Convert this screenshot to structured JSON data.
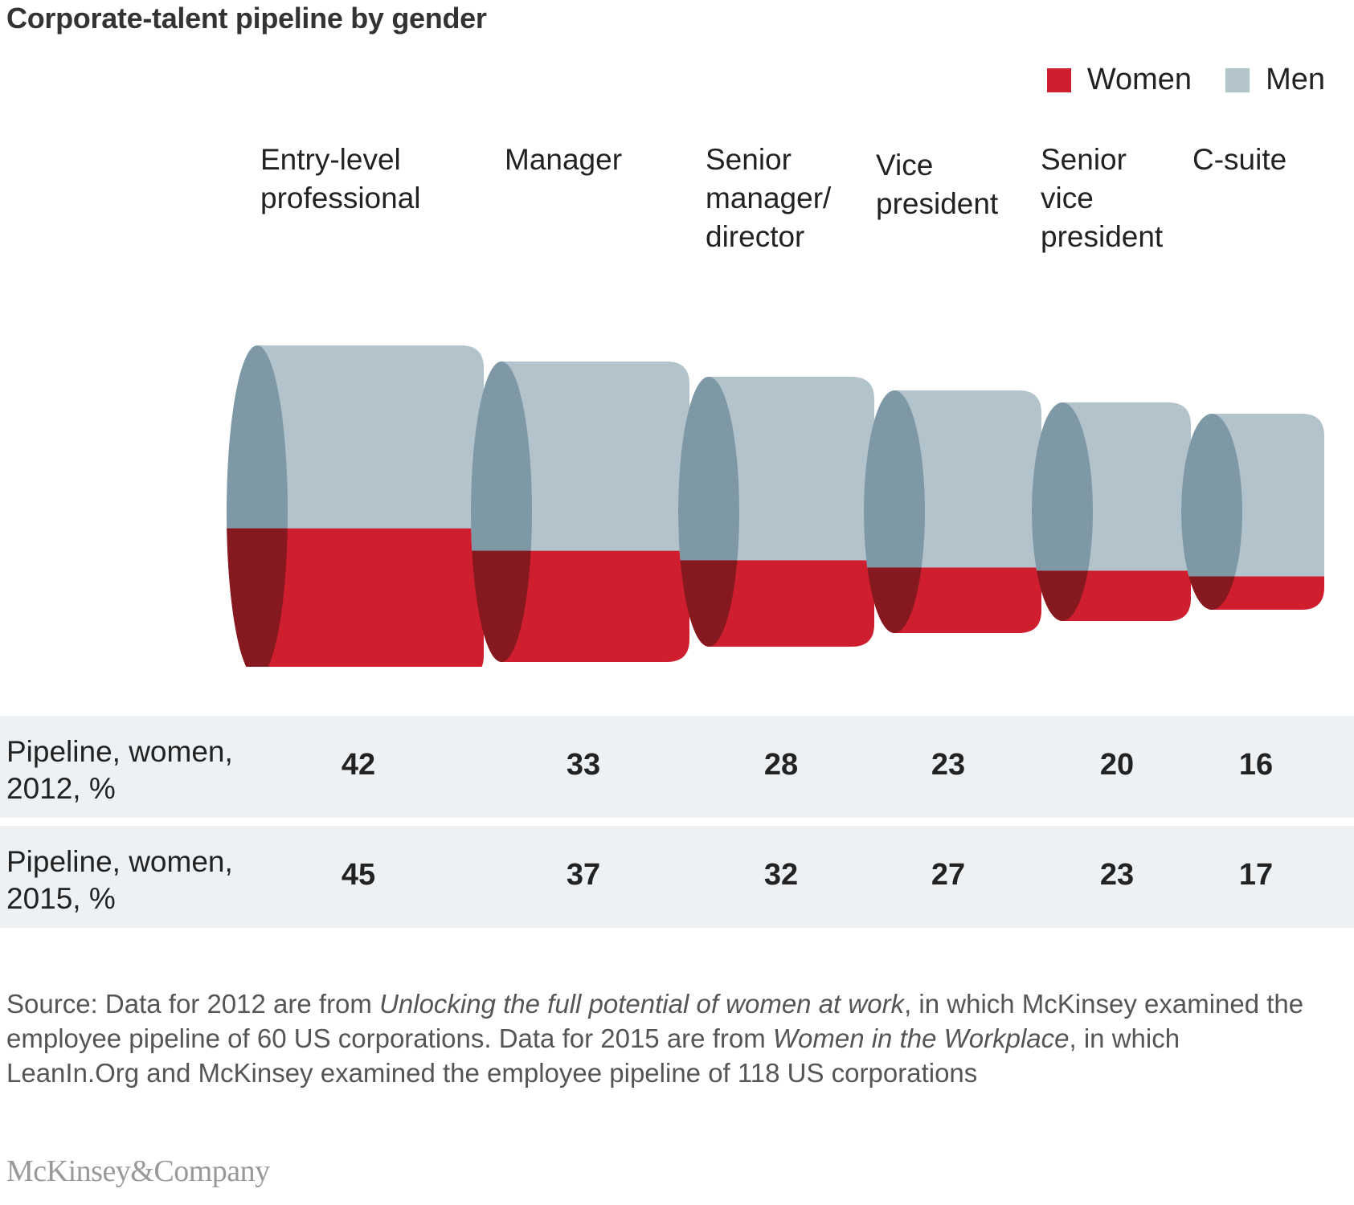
{
  "title": "Corporate-talent pipeline by gender",
  "legend": {
    "women_label": "Women",
    "men_label": "Men"
  },
  "colors": {
    "women": "#cf1f2e",
    "women_dark": "#861820",
    "men": "#b3c3cc",
    "men_dark": "#7f98a6",
    "row_bg": "#edf1f4"
  },
  "categories": [
    {
      "label": "Entry-level\nprofessional"
    },
    {
      "label": "Manager"
    },
    {
      "label": "Senior\nmanager/\ndirector"
    },
    {
      "label": "Vice\npresident"
    },
    {
      "label": "Senior\nvice\npresident"
    },
    {
      "label": "C-suite"
    }
  ],
  "rows": [
    {
      "label": "Pipeline, women,\n2012, %",
      "values": [
        "42",
        "33",
        "28",
        "23",
        "20",
        "16"
      ]
    },
    {
      "label": "Pipeline, women,\n2015, %",
      "values": [
        "45",
        "37",
        "32",
        "27",
        "23",
        "17"
      ]
    }
  ],
  "source": {
    "prefix": "Source: Data for 2012 are from ",
    "title1": "Unlocking the full potential of women at work",
    "middle": ", in which McKinsey examined the employee pipeline of 60 US corporations. Data for 2015 are from ",
    "title2": "Women in the Workplace",
    "suffix": ", in which LeanIn.Org and McKinsey examined the employee pipeline of 118 US corporations"
  },
  "logo": "McKinsey&Company",
  "chart_data": {
    "type": "table",
    "title": "Corporate-talent pipeline by gender",
    "categories": [
      "Entry-level professional",
      "Manager",
      "Senior manager/director",
      "Vice president",
      "Senior vice president",
      "C-suite"
    ],
    "series": [
      {
        "name": "Pipeline, women, 2012, %",
        "values": [
          42,
          33,
          28,
          23,
          20,
          16
        ]
      },
      {
        "name": "Pipeline, women, 2015, %",
        "values": [
          45,
          37,
          32,
          27,
          23,
          17
        ]
      }
    ],
    "legend": [
      "Women",
      "Men"
    ],
    "legend_position": "top-right"
  }
}
